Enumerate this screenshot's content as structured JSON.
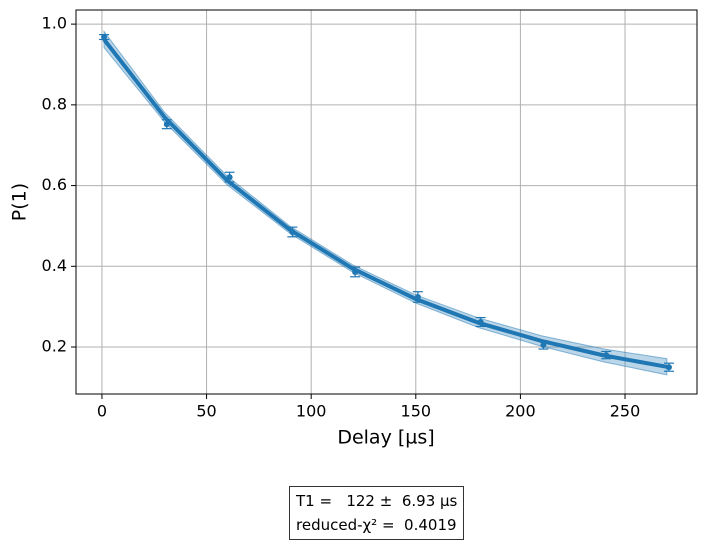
{
  "chart_data": {
    "type": "scatter",
    "xlabel": "Delay [µs]",
    "ylabel": "P(1)",
    "xlim": [
      -12.4,
      284.4
    ],
    "ylim": [
      0.0836,
      1.035
    ],
    "xticks": [
      0,
      50,
      100,
      150,
      200,
      250
    ],
    "yticks": [
      0.2,
      0.4,
      0.6,
      0.8,
      {
        "value": 1.0,
        "label": "1.0"
      }
    ],
    "grid": true,
    "color": "#1f77b4",
    "data": {
      "x": [
        1,
        31,
        61,
        91,
        121,
        151,
        181,
        211,
        241,
        271
      ],
      "values": [
        0.968,
        0.752,
        0.621,
        0.485,
        0.386,
        0.324,
        0.262,
        0.205,
        0.18,
        0.15
      ],
      "errors": [
        0.006,
        0.011,
        0.012,
        0.012,
        0.012,
        0.013,
        0.011,
        0.01,
        0.009,
        0.01
      ]
    },
    "fit": {
      "x": [
        1,
        30,
        60,
        90,
        120,
        150,
        180,
        210,
        240,
        270
      ],
      "values": [
        0.962,
        0.769,
        0.612,
        0.49,
        0.394,
        0.319,
        0.26,
        0.215,
        0.179,
        0.151
      ],
      "lower": [
        0.942,
        0.757,
        0.601,
        0.481,
        0.385,
        0.309,
        0.248,
        0.202,
        0.163,
        0.131
      ],
      "upper": [
        0.982,
        0.781,
        0.623,
        0.499,
        0.403,
        0.329,
        0.272,
        0.228,
        0.195,
        0.171
      ]
    },
    "annotation": [
      "T1 =   122 ±  6.93 µs",
      "reduced-χ² =  0.4019"
    ]
  }
}
